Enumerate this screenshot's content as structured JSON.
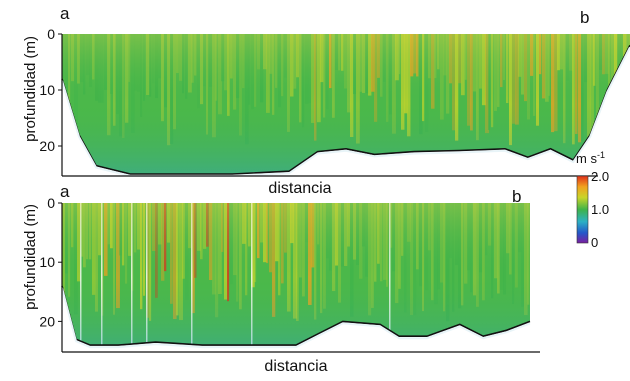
{
  "chart_data": [
    {
      "type": "heatmap",
      "corner_left": "a",
      "corner_right": "b",
      "ylabel": "profundidad (m)",
      "xlabel": "distancia",
      "yticks": [
        "0",
        "10",
        "20"
      ],
      "ylim": [
        0,
        25
      ],
      "bottom_depth_profile": {
        "x_fraction": [
          0,
          0.03,
          0.06,
          0.12,
          0.2,
          0.3,
          0.4,
          0.45,
          0.5,
          0.55,
          0.62,
          0.7,
          0.78,
          0.82,
          0.86,
          0.9,
          0.93,
          0.96,
          1.0
        ],
        "depth_m": [
          8,
          18,
          23.5,
          25,
          25,
          25,
          24.5,
          21,
          20.5,
          21.5,
          21,
          20.8,
          20.5,
          22,
          20.5,
          22.5,
          18,
          10,
          2
        ]
      },
      "colors": {
        "high": "#e0301a",
        "mid": "#3fb34a",
        "low": "#1f78c8"
      }
    },
    {
      "type": "heatmap",
      "corner_left": "a",
      "corner_right": "b",
      "ylabel": "profundidad (m)",
      "xlabel": "distancia",
      "yticks": [
        "0",
        "10",
        "20"
      ],
      "ylim": [
        0,
        25
      ],
      "bottom_depth_profile": {
        "x_fraction": [
          0,
          0.03,
          0.06,
          0.12,
          0.2,
          0.3,
          0.4,
          0.5,
          0.55,
          0.6,
          0.68,
          0.72,
          0.78,
          0.85,
          0.9,
          0.95,
          1.0
        ],
        "depth_m": [
          14,
          23,
          24,
          24,
          23.5,
          24,
          24,
          24,
          22,
          20,
          20.5,
          22.5,
          22.5,
          20.5,
          22.5,
          21.5,
          20
        ]
      },
      "colors": {
        "high": "#e0301a",
        "mid": "#3fb34a",
        "low": "#1f78c8"
      }
    }
  ],
  "colorbar": {
    "unit": "m s",
    "unit_exponent": "-1",
    "ticks": [
      "2.0",
      "1.0",
      "0"
    ],
    "range": [
      0,
      2.0
    ],
    "colors": [
      "#7a1fa0",
      "#2457c9",
      "#2db1c4",
      "#3fb34a",
      "#c9d52a",
      "#f1a21f",
      "#e0301a"
    ]
  }
}
